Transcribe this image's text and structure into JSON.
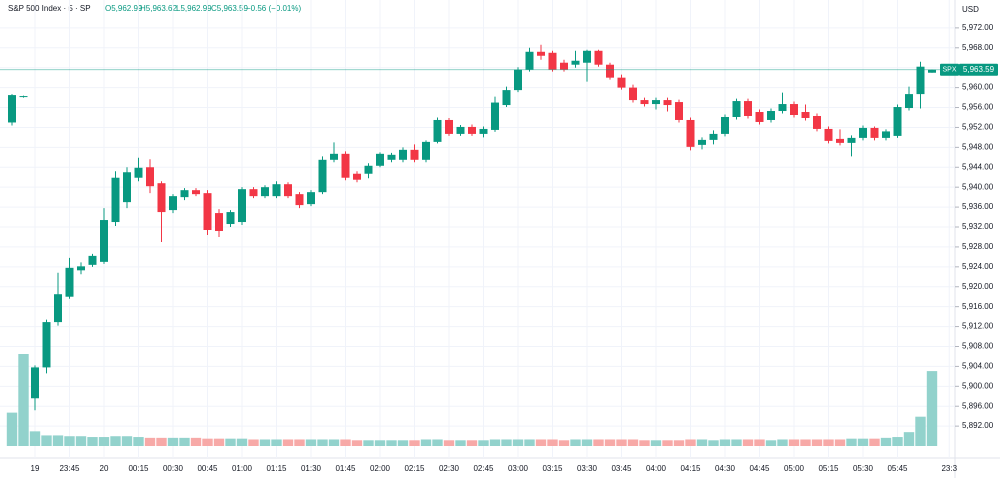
{
  "chart_data": {
    "type": "candlestick",
    "header": {
      "symbol": "S&P 500 Index · 5 · SP",
      "open": "O5,962.99",
      "high": "H5,963.62",
      "low": "L5,962.99",
      "close": "C5,963.59",
      "change": "−0.56 (−0.01%)"
    },
    "currency": "USD",
    "ticker": "SPX",
    "last_label": "5,963.59",
    "up_color": "#089981",
    "down_color": "#f23645",
    "volume_up_color": "#92d2cc",
    "volume_down_color": "#f7a9a7",
    "open": [
      5953.0,
      5958.1,
      5897.6,
      5903.8,
      5912.9,
      5918.0,
      5923.3,
      5924.4,
      5925.0,
      5933.0,
      5937.0,
      5941.9,
      5944.0,
      5940.8,
      5935.4,
      5938.0,
      5939.4,
      5938.8,
      5934.8,
      5932.6,
      5933.0,
      5939.6,
      5938.2,
      5938.2,
      5940.6,
      5938.6,
      5936.6,
      5939.0,
      5945.5,
      5946.7,
      5942.7,
      5942.7,
      5944.3,
      5945.5,
      5945.5,
      5947.5,
      5945.5,
      5949.1,
      5953.5,
      5950.7,
      5952.1,
      5950.7,
      5951.5,
      5956.5,
      5959.5,
      5963.6,
      5967.2,
      5967.0,
      5965.0,
      5964.6,
      5965.0,
      5967.4,
      5964.6,
      5962.0,
      5960.0,
      5957.5,
      5956.7,
      5957.5,
      5957.1,
      5953.5,
      5948.5,
      5949.5,
      5950.7,
      5954.1,
      5957.3,
      5955.1,
      5953.5,
      5955.3,
      5956.7,
      5955.1,
      5954.3,
      5951.7,
      5949.7,
      5948.9,
      5949.9,
      5951.9,
      5949.9,
      5950.3,
      5955.9,
      5958.7,
      5962.99
    ],
    "high": [
      5958.7,
      5958.4,
      5904.2,
      5913.4,
      5922.8,
      5925.8,
      5924.9,
      5926.6,
      5935.8,
      5943.2,
      5944.0,
      5945.9,
      5945.6,
      5941.2,
      5938.6,
      5939.8,
      5939.8,
      5939.4,
      5935.6,
      5935.4,
      5940.0,
      5940.0,
      5940.4,
      5941.2,
      5941.0,
      5939.0,
      5939.4,
      5946.2,
      5949.0,
      5947.2,
      5943.2,
      5944.8,
      5947.0,
      5946.9,
      5948.0,
      5948.6,
      5949.4,
      5954.0,
      5953.9,
      5952.5,
      5952.6,
      5952.2,
      5958.2,
      5960.2,
      5964.1,
      5968.0,
      5968.6,
      5967.4,
      5965.6,
      5967.4,
      5967.6,
      5967.6,
      5965.0,
      5962.6,
      5960.6,
      5958.0,
      5958.0,
      5958.0,
      5957.6,
      5954.0,
      5950.0,
      5951.4,
      5954.6,
      5957.8,
      5957.8,
      5955.6,
      5955.8,
      5959.0,
      5957.2,
      5956.6,
      5954.8,
      5952.2,
      5951.6,
      5950.4,
      5952.4,
      5952.2,
      5951.6,
      5956.6,
      5960.2,
      5965.2,
      5963.62
    ],
    "low": [
      5952.4,
      5958.0,
      5895.2,
      5902.6,
      5912.2,
      5917.6,
      5922.5,
      5924.0,
      5924.6,
      5932.2,
      5935.8,
      5941.2,
      5938.8,
      5929.0,
      5934.8,
      5937.4,
      5938.2,
      5930.4,
      5930.0,
      5932.0,
      5932.4,
      5937.8,
      5937.8,
      5937.8,
      5937.8,
      5935.8,
      5936.2,
      5938.6,
      5945.0,
      5941.4,
      5941.0,
      5941.8,
      5944.0,
      5945.0,
      5945.0,
      5945.0,
      5945.0,
      5948.8,
      5950.3,
      5950.3,
      5950.3,
      5950.0,
      5951.1,
      5956.1,
      5959.1,
      5963.2,
      5965.6,
      5963.2,
      5963.2,
      5964.0,
      5961.2,
      5964.2,
      5961.6,
      5959.6,
      5957.0,
      5956.2,
      5955.6,
      5955.2,
      5953.0,
      5947.4,
      5947.6,
      5948.6,
      5950.2,
      5953.6,
      5953.8,
      5952.6,
      5953.0,
      5954.8,
      5954.0,
      5953.4,
      5951.2,
      5948.8,
      5948.4,
      5946.2,
      5949.4,
      5949.4,
      5949.4,
      5949.9,
      5955.4,
      5955.8,
      5962.99
    ],
    "close": [
      5958.5,
      5958.3,
      5903.8,
      5912.9,
      5918.5,
      5923.8,
      5924.1,
      5926.2,
      5933.4,
      5941.9,
      5943.0,
      5943.9,
      5940.2,
      5935.0,
      5938.2,
      5939.4,
      5938.6,
      5931.4,
      5931.2,
      5935.0,
      5939.6,
      5938.2,
      5940.0,
      5940.6,
      5938.2,
      5936.4,
      5939.0,
      5945.5,
      5946.7,
      5941.9,
      5941.5,
      5944.3,
      5946.7,
      5946.5,
      5947.5,
      5945.5,
      5949.1,
      5953.5,
      5950.7,
      5952.1,
      5950.7,
      5951.7,
      5957.0,
      5959.5,
      5963.6,
      5967.2,
      5966.4,
      5963.6,
      5963.6,
      5965.4,
      5967.4,
      5964.6,
      5962.0,
      5960.0,
      5957.5,
      5956.7,
      5957.5,
      5956.5,
      5953.5,
      5948.1,
      5949.5,
      5950.7,
      5954.1,
      5957.3,
      5954.3,
      5953.1,
      5955.3,
      5956.7,
      5954.5,
      5953.9,
      5951.7,
      5949.3,
      5948.9,
      5949.9,
      5951.9,
      5949.9,
      5951.2,
      5956.1,
      5958.7,
      5964.2,
      5963.59
    ],
    "volume": [
      41,
      113,
      18,
      13,
      13,
      12,
      12,
      11,
      11,
      12,
      12,
      11,
      10,
      10,
      10,
      10,
      10,
      9,
      9,
      9,
      9,
      8,
      8,
      8,
      8,
      8,
      8,
      8,
      8,
      8,
      7,
      7,
      7,
      7,
      7,
      7,
      8,
      8,
      7,
      7,
      7,
      7,
      8,
      8,
      8,
      8,
      8,
      8,
      7,
      8,
      8,
      8,
      8,
      8,
      8,
      7,
      7,
      7,
      7,
      8,
      8,
      7,
      8,
      8,
      8,
      8,
      7,
      8,
      8,
      8,
      8,
      8,
      8,
      9,
      9,
      9,
      10,
      11,
      17,
      36,
      92
    ],
    "xticks": [
      {
        "value": 2,
        "label": "19"
      },
      {
        "value": 5,
        "label": "23:45"
      },
      {
        "value": 8,
        "label": "20"
      },
      {
        "value": 11,
        "label": "00:15"
      },
      {
        "value": 14,
        "label": "00:30"
      },
      {
        "value": 17,
        "label": "00:45"
      },
      {
        "value": 20,
        "label": "01:00"
      },
      {
        "value": 23,
        "label": "01:15"
      },
      {
        "value": 26,
        "label": "01:30"
      },
      {
        "value": 29,
        "label": "01:45"
      },
      {
        "value": 32,
        "label": "02:00"
      },
      {
        "value": 35,
        "label": "02:15"
      },
      {
        "value": 38,
        "label": "02:30"
      },
      {
        "value": 41,
        "label": "02:45"
      },
      {
        "value": 44,
        "label": "03:00"
      },
      {
        "value": 47,
        "label": "03:15"
      },
      {
        "value": 50,
        "label": "03:30"
      },
      {
        "value": 53,
        "label": "03:45"
      },
      {
        "value": 56,
        "label": "04:00"
      },
      {
        "value": 59,
        "label": "04:15"
      },
      {
        "value": 62,
        "label": "04:30"
      },
      {
        "value": 65,
        "label": "04:45"
      },
      {
        "value": 68,
        "label": "05:00"
      },
      {
        "value": 71,
        "label": "05:15"
      },
      {
        "value": 74,
        "label": "05:30"
      },
      {
        "value": 77,
        "label": "05:45"
      },
      {
        "value": 81.5,
        "label": "23:3"
      }
    ],
    "ylim": [
      5885.6,
      5977.6
    ],
    "yticks": [
      {
        "value": 5892,
        "label": "5,892.00"
      },
      {
        "value": 5896,
        "label": "5,896.00"
      },
      {
        "value": 5900,
        "label": "5,900.00"
      },
      {
        "value": 5904,
        "label": "5,904.00"
      },
      {
        "value": 5908,
        "label": "5,908.00"
      },
      {
        "value": 5912,
        "label": "5,912.00"
      },
      {
        "value": 5916,
        "label": "5,916.00"
      },
      {
        "value": 5920,
        "label": "5,920.00"
      },
      {
        "value": 5924,
        "label": "5,924.00"
      },
      {
        "value": 5928,
        "label": "5,928.00"
      },
      {
        "value": 5932,
        "label": "5,932.00"
      },
      {
        "value": 5936,
        "label": "5,936.00"
      },
      {
        "value": 5940,
        "label": "5,940.00"
      },
      {
        "value": 5944,
        "label": "5,944.00"
      },
      {
        "value": 5948,
        "label": "5,948.00"
      },
      {
        "value": 5952,
        "label": "5,952.00"
      },
      {
        "value": 5956,
        "label": "5,956.00"
      },
      {
        "value": 5960,
        "label": "5,960.00"
      },
      {
        "value": 5964,
        "label": "5,964.00"
      },
      {
        "value": 5968,
        "label": "5,968.00"
      },
      {
        "value": 5972,
        "label": "5,972.00"
      }
    ],
    "grid": true
  }
}
